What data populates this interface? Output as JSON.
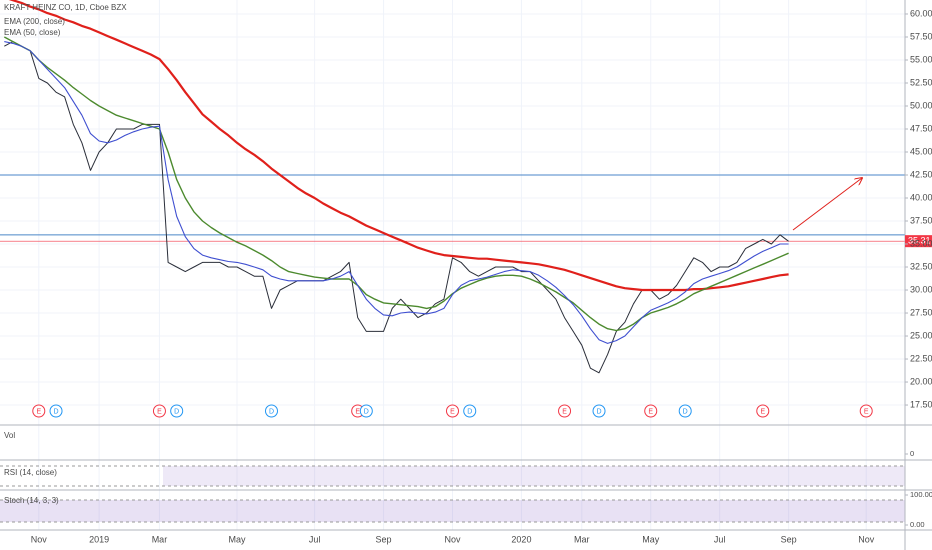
{
  "chart_data": {
    "type": "line",
    "title": "KRAFT HEINZ CO, 1D, Cboe BZX",
    "categories": [
      null,
      null,
      null,
      null,
      "Nov",
      null,
      null,
      null,
      null,
      null,
      null,
      "2019",
      null,
      null,
      null,
      null,
      null,
      null,
      "Mar",
      null,
      null,
      null,
      null,
      null,
      null,
      null,
      null,
      "May",
      null,
      null,
      null,
      null,
      null,
      null,
      null,
      null,
      "Jul",
      null,
      null,
      null,
      null,
      null,
      null,
      null,
      "Sep",
      null,
      null,
      null,
      null,
      null,
      null,
      null,
      "Nov",
      null,
      null,
      null,
      null,
      null,
      null,
      null,
      "2020",
      null,
      null,
      null,
      null,
      null,
      null,
      "Mar",
      null,
      null,
      null,
      null,
      null,
      null,
      null,
      "May",
      null,
      null,
      null,
      null,
      null,
      null,
      null,
      "Jul",
      null,
      null,
      null,
      null,
      null,
      null,
      null,
      "Sep",
      null,
      null,
      null,
      null,
      null,
      null,
      null,
      null,
      "Nov",
      null,
      null,
      null,
      null
    ],
    "series": [
      {
        "color": "#2a2e39",
        "values": [
          56.5,
          57,
          56.5,
          56,
          53,
          52.5,
          51.5,
          51,
          48,
          46,
          43,
          45,
          46,
          47.5,
          47.5,
          47.5,
          48,
          48,
          48,
          33,
          32.5,
          32,
          32.5,
          33,
          33,
          33,
          32.5,
          32.5,
          32,
          31.5,
          31.5,
          28,
          30,
          30.5,
          31,
          31,
          31,
          31,
          31.5,
          32,
          33,
          27,
          25.5,
          25.5,
          25.5,
          28,
          29,
          28,
          27,
          27.5,
          28.5,
          29,
          33.5,
          33,
          32,
          31.5,
          32,
          32.5,
          32.5,
          32.5,
          32,
          32,
          31,
          30,
          29,
          27,
          25.5,
          24,
          21.5,
          21,
          23,
          25.5,
          26.5,
          28.5,
          30,
          30,
          29,
          29.5,
          30.5,
          32,
          33.5,
          33,
          32,
          32.5,
          32.5,
          33,
          34.5,
          35,
          35.5,
          35,
          36,
          35.3,
          null,
          null,
          null,
          null,
          null,
          null,
          null,
          null,
          null,
          null,
          null,
          null,
          null
        ]
      },
      {
        "name": "EMA (200, close)",
        "color": "#e0201b",
        "width": 2.2,
        "values": [
          61.8,
          61.5,
          61.2,
          60.8,
          60.5,
          60.1,
          59.8,
          59.4,
          59.1,
          58.7,
          58.4,
          58,
          57.6,
          57.2,
          56.8,
          56.4,
          56,
          55.6,
          55.1,
          54,
          52.8,
          51.5,
          50.3,
          49.1,
          48.3,
          47.5,
          46.8,
          46,
          45.3,
          44.7,
          44,
          43.2,
          42.5,
          41.8,
          41.1,
          40.5,
          40,
          39.4,
          38.9,
          38.4,
          38,
          37.5,
          37,
          36.6,
          36.2,
          35.8,
          35.4,
          35,
          34.6,
          34.3,
          34,
          33.8,
          33.7,
          33.6,
          33.5,
          33.4,
          33.4,
          33.3,
          33.2,
          33.1,
          33,
          32.9,
          32.8,
          32.6,
          32.4,
          32.2,
          31.9,
          31.6,
          31.3,
          31,
          30.7,
          30.4,
          30.2,
          30.1,
          30,
          30,
          30,
          30,
          30,
          30,
          30.1,
          30.1,
          30.2,
          30.3,
          30.4,
          30.6,
          30.8,
          31,
          31.2,
          31.4,
          31.6,
          31.7,
          null,
          null,
          null,
          null,
          null,
          null,
          null,
          null,
          null,
          null,
          null,
          null,
          null
        ]
      },
      {
        "name": "EMA (50, close)",
        "color": "#4c8a2e",
        "width": 1.4,
        "values": [
          57.5,
          57,
          56.5,
          56,
          55,
          54.2,
          53.5,
          52.8,
          52,
          51.3,
          50.6,
          50,
          49.5,
          49,
          48.7,
          48.4,
          48.1,
          47.8,
          47.5,
          45,
          42,
          40,
          38.5,
          37.5,
          36.8,
          36.2,
          35.7,
          35.2,
          34.8,
          34.3,
          33.8,
          33.2,
          32.5,
          32,
          31.8,
          31.6,
          31.4,
          31.3,
          31.2,
          31.2,
          31.2,
          30.5,
          29.5,
          29,
          28.6,
          28.5,
          28.4,
          28.3,
          28.2,
          28,
          28.2,
          28.8,
          29.6,
          30.2,
          30.6,
          31,
          31.3,
          31.5,
          31.6,
          31.6,
          31.5,
          31.2,
          30.8,
          30.3,
          29.8,
          29.2,
          28.6,
          27.8,
          27,
          26.3,
          25.8,
          25.6,
          25.8,
          26.3,
          27,
          27.5,
          27.8,
          28.1,
          28.5,
          29,
          29.6,
          30,
          30.4,
          30.8,
          31.2,
          31.6,
          32,
          32.4,
          32.8,
          33.2,
          33.6,
          34,
          null,
          null,
          null,
          null,
          null,
          null,
          null,
          null,
          null,
          null,
          null,
          null,
          null
        ]
      },
      {
        "color": "#3f4fd0",
        "width": 1.1,
        "values": [
          57,
          56.8,
          56.5,
          56,
          55,
          54,
          53,
          52,
          50.5,
          49,
          47,
          46.2,
          46,
          46.3,
          46.8,
          47.2,
          47.5,
          47.7,
          47.8,
          42,
          38,
          35.8,
          34.5,
          33.8,
          33.5,
          33.3,
          33.1,
          33,
          32.8,
          32.5,
          32.2,
          31.5,
          31.2,
          31,
          31,
          31,
          31,
          31,
          31.2,
          31.5,
          32,
          30.5,
          29,
          28,
          27.3,
          27.2,
          27.5,
          27.6,
          27.5,
          27.4,
          27.6,
          28,
          29.5,
          30.5,
          31,
          31.2,
          31.4,
          31.7,
          32,
          32.2,
          32.1,
          32,
          31.6,
          31,
          30.3,
          29.4,
          28.4,
          27.2,
          25.8,
          24.6,
          24.2,
          24.5,
          25,
          26,
          27,
          27.8,
          28.2,
          28.6,
          29.1,
          29.8,
          30.7,
          31.2,
          31.5,
          31.8,
          32.1,
          32.5,
          33.1,
          33.7,
          34.2,
          34.6,
          35,
          35,
          null,
          null,
          null,
          null,
          null,
          null,
          null,
          null,
          null,
          null,
          null,
          null,
          null
        ]
      }
    ],
    "levels": [
      {
        "value": 42.5,
        "color": "#4a86c8"
      },
      {
        "value": 36,
        "color": "#4a86c8"
      }
    ],
    "last_price": {
      "value": 35.31,
      "label": "35.31",
      "color": "#f23645"
    },
    "events": [
      null,
      null,
      null,
      null,
      "E",
      null,
      "D",
      null,
      null,
      null,
      null,
      null,
      null,
      null,
      null,
      null,
      null,
      null,
      "E",
      null,
      "D",
      null,
      null,
      null,
      null,
      null,
      null,
      null,
      null,
      null,
      null,
      "D",
      null,
      null,
      null,
      null,
      null,
      null,
      null,
      null,
      null,
      "E",
      "D",
      null,
      null,
      null,
      null,
      null,
      null,
      null,
      null,
      null,
      "E",
      null,
      "D",
      null,
      null,
      null,
      null,
      null,
      null,
      null,
      null,
      null,
      null,
      "E",
      null,
      null,
      null,
      "D",
      null,
      null,
      null,
      null,
      null,
      "E",
      null,
      null,
      null,
      "D",
      null,
      null,
      null,
      null,
      null,
      null,
      null,
      null,
      "E",
      null,
      null,
      null,
      null,
      null,
      null,
      null,
      null,
      null,
      null,
      null,
      "E",
      null,
      null,
      null,
      null
    ],
    "ylim": [
      15.33,
      61.52
    ],
    "yticks": [
      {
        "value": 60,
        "label": "60.00"
      },
      {
        "value": 57.5,
        "label": "57.50"
      },
      {
        "value": 55,
        "label": "55.00"
      },
      {
        "value": 52.5,
        "label": "52.50"
      },
      {
        "value": 50,
        "label": "50.00"
      },
      {
        "value": 47.5,
        "label": "47.50"
      },
      {
        "value": 45,
        "label": "45.00"
      },
      {
        "value": 42.5,
        "label": "42.50"
      },
      {
        "value": 40,
        "label": "40.00"
      },
      {
        "value": 37.5,
        "label": "37.50"
      },
      {
        "value": 35,
        "label": "35.00"
      },
      {
        "value": 32.5,
        "label": "32.50"
      },
      {
        "value": 30,
        "label": "30.00"
      },
      {
        "value": 27.5,
        "label": "27.50"
      },
      {
        "value": 25,
        "label": "25.00"
      },
      {
        "value": 22.5,
        "label": "22.50"
      },
      {
        "value": 20,
        "label": "20.00"
      },
      {
        "value": 17.5,
        "label": "17.50"
      }
    ],
    "grid": true,
    "panes": [
      {
        "title": "Vol",
        "ticks": [
          0
        ]
      },
      {
        "title": "RSI (14, close)"
      },
      {
        "title": "Stoch (14, 3, 3)",
        "ticks": [
          {
            "value": 100,
            "label": "100.00"
          },
          {
            "value": 0,
            "label": "0.00"
          }
        ]
      }
    ]
  }
}
